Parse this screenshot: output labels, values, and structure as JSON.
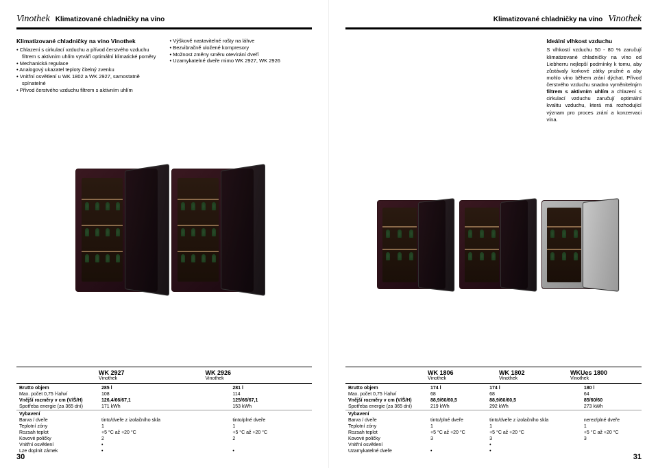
{
  "logo": "Vinothek",
  "header_title": "Klimatizované chladničky na víno",
  "page_left_num": "30",
  "page_right_num": "31",
  "intro": {
    "title": "Klimatizované chladničky na víno Vinothek",
    "col1": [
      "Chlazení s cirkulací vzduchu a přívod čerstvého vzduchu filtrem s aktivním uhlím vytváří optimální klimatické poměry",
      "Mechanická regulace",
      "Analogový ukazatel teploty čitelný zvenku",
      "Vnitřní osvětlení u WK 1802 a WK 2927, samostatně spínatelné",
      "Přívod čerstvého vzduchu filtrem s aktivním uhlím"
    ],
    "col2": [
      "Výškově nastavitelné rošty na láhve",
      "Bezvibračně uložené kompresory",
      "Možnost změny směru otevírání dveří",
      "Uzamykatelné dveře mimo WK 2927, WK 2926"
    ]
  },
  "right_block": {
    "title": "Ideální vlhkost vzduchu",
    "body": "S vlhkostí vzduchu 50 - 80 % zaručují klimatizované chladničky na víno od Liebherru nejlepší podmínky k tomu, aby zůstávaly korkové zátky pružné a aby mohlo víno během zrání dýchat. Přívod čerstvého vzduchu snadno vyměnitelným",
    "bold1": "filtrem s aktivním uhlím",
    "body2": " a chlazení s cirkulací vzduchu zaručují optimální kvalitu vzduchu, která má rozhodující význam pro proces zrání a konzervaci vína."
  },
  "models_left": {
    "cols": [
      "WK 2927",
      "WK 2926"
    ],
    "sub": "Vinothek",
    "col_widths": [
      "120px",
      "auto",
      "auto"
    ]
  },
  "models_right": {
    "cols": [
      "WK 1806",
      "WK 1802",
      "WKUes 1800"
    ],
    "sub": "Vinothek",
    "col_widths": [
      "120px",
      "auto",
      "auto",
      "auto"
    ]
  },
  "specs_left": {
    "rows": [
      {
        "label": "Brutto objem",
        "v": [
          "285 l",
          "281 l"
        ],
        "bold": true
      },
      {
        "label": "Max. počet 0,75 l-lahví",
        "v": [
          "108",
          "114"
        ]
      },
      {
        "label": "Vnější rozměry v cm (V/Š/H)",
        "v": [
          "126,4/66/67,1",
          "125/66/67,1"
        ],
        "bold": true
      },
      {
        "label": "Spotřeba energie (za 365 dní)",
        "v": [
          "171 kWh",
          "153 kWh"
        ]
      },
      {
        "label": "Vybavení",
        "v": [
          "",
          ""
        ],
        "section": true
      },
      {
        "label": "Barva / dveře",
        "v": [
          "tinto/dveře z izolačního skla",
          "tinto/plné dveře"
        ]
      },
      {
        "label": "Teplotní zóny",
        "v": [
          "1",
          "1"
        ]
      },
      {
        "label": "Rozsah teplot",
        "v": [
          "+5 °C až +20 °C",
          "+5 °C až +20 °C"
        ]
      },
      {
        "label": "Kovové poličky",
        "v": [
          "2",
          "2"
        ]
      },
      {
        "label": "Vnitřní osvětlení",
        "v": [
          "•",
          ""
        ]
      },
      {
        "label": "Lze doplnit zámek",
        "v": [
          "•",
          "•"
        ]
      }
    ]
  },
  "specs_right": {
    "rows": [
      {
        "label": "Brutto objem",
        "v": [
          "174 l",
          "174 l",
          "180 l"
        ],
        "bold": true
      },
      {
        "label": "Max. počet 0,75 l-lahví",
        "v": [
          "68",
          "68",
          "64"
        ]
      },
      {
        "label": "Vnější rozměry v cm (V/Š/H)",
        "v": [
          "88,9/60/60,5",
          "88,9/60/60,5",
          "85/60/60"
        ],
        "bold": true
      },
      {
        "label": "Spotřeba energie (za 365 dní)",
        "v": [
          "219 kWh",
          "292 kWh",
          "273 kWh"
        ]
      },
      {
        "label": "Vybavení",
        "v": [
          "",
          "",
          ""
        ],
        "section": true
      },
      {
        "label": "Barva / dveře",
        "v": [
          "tinto/plné dveře",
          "tinto/dveře z izolačního skla",
          "nerez/plné dveře"
        ]
      },
      {
        "label": "Teplotní zóny",
        "v": [
          "1",
          "1",
          "1"
        ]
      },
      {
        "label": "Rozsah teplot",
        "v": [
          "+5 °C až +20 °C",
          "+5 °C až +20 °C",
          "+5 °C až +20 °C"
        ]
      },
      {
        "label": "Kovové poličky",
        "v": [
          "3",
          "3",
          "3"
        ]
      },
      {
        "label": "Vnitřní osvětlení",
        "v": [
          "",
          "•",
          ""
        ]
      },
      {
        "label": "Uzamykatelné dveře",
        "v": [
          "•",
          "•",
          ""
        ]
      }
    ]
  },
  "colors": {
    "wine_body": "#3a1820",
    "steel_body": "#b0b0b0"
  }
}
